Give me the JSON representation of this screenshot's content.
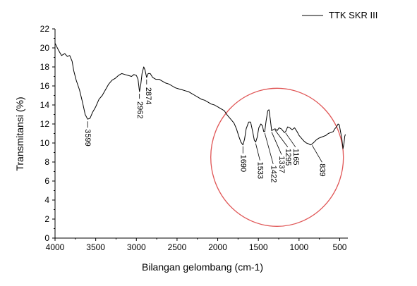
{
  "chart_data": {
    "type": "line",
    "title": "",
    "xlabel": "Bilangan gelombang (cm-1)",
    "ylabel": "Transmitansi (%)",
    "xlim": [
      4000,
      400
    ],
    "ylim": [
      0,
      22
    ],
    "x_reversed": true,
    "x_ticks": [
      4000,
      3500,
      3000,
      2500,
      2000,
      1500,
      1000,
      500
    ],
    "y_ticks": [
      0,
      2,
      4,
      6,
      8,
      10,
      12,
      14,
      16,
      18,
      20,
      22
    ],
    "legend": {
      "position": "top-right",
      "entries": [
        "TTK SKR III"
      ]
    },
    "grid": false,
    "series": [
      {
        "name": "TTK SKR III",
        "color": "#000000",
        "points": [
          [
            4000,
            20.5
          ],
          [
            3960,
            19.8
          ],
          [
            3920,
            19.2
          ],
          [
            3880,
            19.4
          ],
          [
            3850,
            19.1
          ],
          [
            3820,
            19.2
          ],
          [
            3790,
            18.6
          ],
          [
            3770,
            17.6
          ],
          [
            3740,
            16.6
          ],
          [
            3700,
            15.6
          ],
          [
            3660,
            14.2
          ],
          [
            3630,
            13.0
          ],
          [
            3599,
            12.5
          ],
          [
            3570,
            12.6
          ],
          [
            3540,
            13.2
          ],
          [
            3500,
            13.8
          ],
          [
            3460,
            14.6
          ],
          [
            3420,
            15.0
          ],
          [
            3380,
            15.6
          ],
          [
            3340,
            16.2
          ],
          [
            3300,
            16.6
          ],
          [
            3260,
            16.8
          ],
          [
            3220,
            17.1
          ],
          [
            3180,
            17.3
          ],
          [
            3140,
            17.2
          ],
          [
            3100,
            17.1
          ],
          [
            3060,
            17.0
          ],
          [
            3030,
            17.2
          ],
          [
            3000,
            17.1
          ],
          [
            2980,
            16.7
          ],
          [
            2962,
            15.4
          ],
          [
            2945,
            16.2
          ],
          [
            2930,
            17.3
          ],
          [
            2910,
            18.0
          ],
          [
            2895,
            17.7
          ],
          [
            2874,
            16.9
          ],
          [
            2855,
            17.3
          ],
          [
            2830,
            17.3
          ],
          [
            2800,
            16.9
          ],
          [
            2760,
            16.7
          ],
          [
            2720,
            16.7
          ],
          [
            2680,
            16.5
          ],
          [
            2640,
            16.3
          ],
          [
            2600,
            16.2
          ],
          [
            2560,
            16.0
          ],
          [
            2520,
            15.8
          ],
          [
            2480,
            15.7
          ],
          [
            2440,
            15.6
          ],
          [
            2400,
            15.5
          ],
          [
            2360,
            15.4
          ],
          [
            2320,
            15.2
          ],
          [
            2280,
            15.0
          ],
          [
            2240,
            14.8
          ],
          [
            2200,
            14.6
          ],
          [
            2160,
            14.5
          ],
          [
            2120,
            14.3
          ],
          [
            2080,
            14.1
          ],
          [
            2040,
            14.0
          ],
          [
            2000,
            13.8
          ],
          [
            1960,
            13.6
          ],
          [
            1920,
            13.4
          ],
          [
            1880,
            12.9
          ],
          [
            1840,
            12.5
          ],
          [
            1800,
            12.1
          ],
          [
            1770,
            11.5
          ],
          [
            1740,
            10.7
          ],
          [
            1715,
            10.1
          ],
          [
            1690,
            9.8
          ],
          [
            1670,
            10.4
          ],
          [
            1650,
            11.5
          ],
          [
            1620,
            12.2
          ],
          [
            1595,
            12.2
          ],
          [
            1570,
            11.2
          ],
          [
            1550,
            10.3
          ],
          [
            1533,
            10.1
          ],
          [
            1515,
            10.6
          ],
          [
            1495,
            11.6
          ],
          [
            1470,
            12.0
          ],
          [
            1450,
            11.8
          ],
          [
            1435,
            11.2
          ],
          [
            1422,
            11.2
          ],
          [
            1405,
            12.3
          ],
          [
            1385,
            13.4
          ],
          [
            1370,
            13.5
          ],
          [
            1355,
            12.6
          ],
          [
            1337,
            11.3
          ],
          [
            1318,
            11.4
          ],
          [
            1295,
            11.5
          ],
          [
            1270,
            11.3
          ],
          [
            1245,
            11.6
          ],
          [
            1220,
            11.5
          ],
          [
            1200,
            11.3
          ],
          [
            1180,
            11.1
          ],
          [
            1165,
            11.2
          ],
          [
            1140,
            11.7
          ],
          [
            1115,
            11.6
          ],
          [
            1085,
            11.4
          ],
          [
            1055,
            11.6
          ],
          [
            1025,
            11.2
          ],
          [
            1000,
            10.8
          ],
          [
            970,
            10.5
          ],
          [
            940,
            10.2
          ],
          [
            910,
            10.0
          ],
          [
            880,
            9.9
          ],
          [
            860,
            9.8
          ],
          [
            839,
            9.9
          ],
          [
            815,
            10.1
          ],
          [
            790,
            10.3
          ],
          [
            760,
            10.5
          ],
          [
            730,
            10.6
          ],
          [
            700,
            10.7
          ],
          [
            670,
            10.8
          ],
          [
            640,
            11.0
          ],
          [
            610,
            11.1
          ],
          [
            580,
            11.2
          ],
          [
            560,
            11.5
          ],
          [
            540,
            11.7
          ],
          [
            520,
            12.0
          ],
          [
            505,
            11.9
          ],
          [
            490,
            11.2
          ],
          [
            475,
            10.5
          ],
          [
            460,
            9.4
          ],
          [
            447,
            10.0
          ],
          [
            438,
            10.7
          ],
          [
            430,
            10.9
          ]
        ]
      }
    ],
    "annotations": [
      {
        "label": "3599",
        "x": 3599,
        "y": 12.5
      },
      {
        "label": "2962",
        "x": 2962,
        "y": 15.4
      },
      {
        "label": "2874",
        "x": 2874,
        "y": 16.9
      },
      {
        "label": "1690",
        "x": 1690,
        "y": 9.8
      },
      {
        "label": "1533",
        "x": 1533,
        "y": 10.1
      },
      {
        "label": "1422",
        "x": 1422,
        "y": 11.2
      },
      {
        "label": "1337",
        "x": 1337,
        "y": 11.3
      },
      {
        "label": "1295",
        "x": 1295,
        "y": 11.5
      },
      {
        "label": "1165",
        "x": 1165,
        "y": 11.2
      },
      {
        "label": "839",
        "x": 839,
        "y": 9.9
      }
    ],
    "highlight": {
      "shape": "ellipse",
      "color": "#e05656",
      "center": [
        1270,
        8.5
      ]
    }
  }
}
